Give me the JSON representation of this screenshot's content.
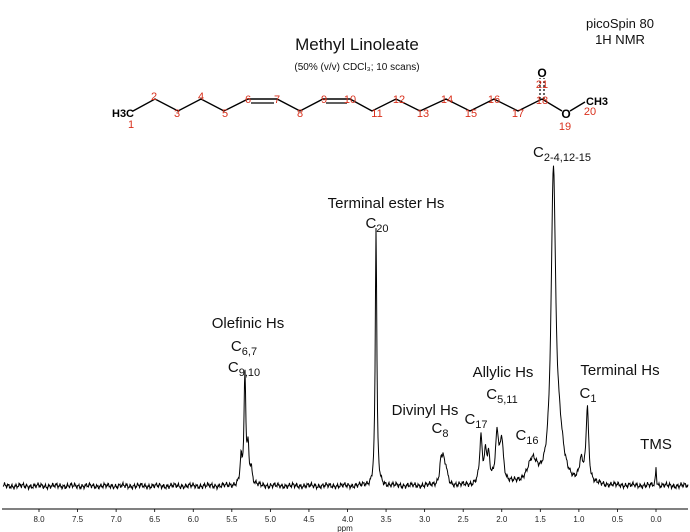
{
  "chart_data": {
    "type": "line",
    "title": "Methyl Linoleate",
    "subtitle": "(50% (v/v) CDCl₃; 10 scans)",
    "instrument": "picoSpin 80",
    "experiment": "1H NMR",
    "xlabel": "ppm",
    "ylabel": "",
    "x_reversed": true,
    "xlim": [
      8.3,
      -0.4
    ],
    "x_ticks": [
      "8.0",
      "7.5",
      "7.0",
      "6.5",
      "6.0",
      "5.5",
      "5.0",
      "4.5",
      "4.0",
      "3.5",
      "3.0",
      "2.5",
      "2.0",
      "1.5",
      "1.0",
      "0.5",
      "0.0"
    ],
    "grid": false,
    "legend": "none",
    "line_color": "#000000",
    "peaks": [
      {
        "ppm": 5.38,
        "height": 0.17,
        "width": 0.015
      },
      {
        "ppm": 5.33,
        "height": 0.78,
        "width": 0.014
      },
      {
        "ppm": 5.29,
        "height": 0.25,
        "width": 0.014
      },
      {
        "ppm": 5.25,
        "height": 0.12,
        "width": 0.015
      },
      {
        "ppm": 3.63,
        "height": 1.85,
        "width": 0.012
      },
      {
        "ppm": 2.79,
        "height": 0.14,
        "width": 0.02
      },
      {
        "ppm": 2.76,
        "height": 0.17,
        "width": 0.02
      },
      {
        "ppm": 2.72,
        "height": 0.1,
        "width": 0.02
      },
      {
        "ppm": 2.27,
        "height": 0.32,
        "width": 0.02
      },
      {
        "ppm": 2.21,
        "height": 0.2,
        "width": 0.02
      },
      {
        "ppm": 2.17,
        "height": 0.18,
        "width": 0.02
      },
      {
        "ppm": 2.06,
        "height": 0.34,
        "width": 0.025
      },
      {
        "ppm": 2.0,
        "height": 0.3,
        "width": 0.025
      },
      {
        "ppm": 1.6,
        "height": 0.16,
        "width": 0.08
      },
      {
        "ppm": 1.33,
        "height": 2.2,
        "width": 0.035
      },
      {
        "ppm": 1.25,
        "height": 0.25,
        "width": 0.06
      },
      {
        "ppm": 0.97,
        "height": 0.14,
        "width": 0.03
      },
      {
        "ppm": 0.89,
        "height": 0.54,
        "width": 0.02
      },
      {
        "ppm": 0.0,
        "height": 0.13,
        "width": 0.008
      }
    ],
    "annotations": [
      {
        "label": "Olefinic Hs",
        "sub": [
          "C6,7",
          "C9,10"
        ]
      },
      {
        "label": "Terminal ester Hs",
        "sub": [
          "C20"
        ]
      },
      {
        "label": "Divinyl Hs",
        "sub": [
          "C8"
        ]
      },
      {
        "label": "Allylic Hs",
        "sub": [
          "C5,11"
        ]
      },
      {
        "label": "",
        "sub": [
          "C17"
        ]
      },
      {
        "label": "",
        "sub": [
          "C16"
        ]
      },
      {
        "label": "",
        "sub": [
          "C2-4,12-15"
        ]
      },
      {
        "label": "Terminal Hs",
        "sub": [
          "C1"
        ]
      },
      {
        "label": "TMS",
        "sub": []
      }
    ]
  },
  "structure": {
    "end_group": "H3C",
    "carbon_numbers": [
      "1",
      "2",
      "3",
      "4",
      "5",
      "6",
      "7",
      "8",
      "9",
      "10",
      "11",
      "12",
      "13",
      "14",
      "15",
      "16",
      "17",
      "18",
      "21",
      "19",
      "20"
    ],
    "oxygen_label": "O",
    "methyl_label": "CH3",
    "label_color": "#d9301c"
  }
}
